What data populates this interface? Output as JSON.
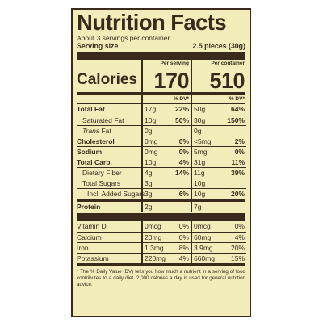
{
  "title": "Nutrition Facts",
  "servings_per_container": "About 3 servings per container",
  "serving_size_label": "Serving size",
  "serving_size_value": "2.5 pieces (30g)",
  "calories_label": "Calories",
  "per_serving_label": "Per serving",
  "per_container_label": "Per container",
  "calories_serving": "170",
  "calories_container": "510",
  "dv_label": "% DV*",
  "nutrients": [
    {
      "name": "Total Fat",
      "s_amt": "17g",
      "s_dv": "22%",
      "c_amt": "50g",
      "c_dv": "64%"
    },
    {
      "name": "Saturated Fat",
      "s_amt": "10g",
      "s_dv": "50%",
      "c_amt": "30g",
      "c_dv": "150%"
    },
    {
      "name_italic": "Trans",
      "name_rest": " Fat",
      "s_amt": "0g",
      "s_dv": "",
      "c_amt": "0g",
      "c_dv": ""
    },
    {
      "name": "Cholesterol",
      "s_amt": "0mg",
      "s_dv": "0%",
      "c_amt": "<5mg",
      "c_dv": "2%"
    },
    {
      "name": "Sodium",
      "s_amt": "0mg",
      "s_dv": "0%",
      "c_amt": "5mg",
      "c_dv": "0%"
    },
    {
      "name": "Total Carb.",
      "s_amt": "10g",
      "s_dv": "4%",
      "c_amt": "31g",
      "c_dv": "11%"
    },
    {
      "name": "Dietary Fiber",
      "s_amt": "4g",
      "s_dv": "14%",
      "c_amt": "11g",
      "c_dv": "39%"
    },
    {
      "name": "Total Sugars",
      "s_amt": "3g",
      "s_dv": "",
      "c_amt": "10g",
      "c_dv": ""
    },
    {
      "name": "Incl. Added Sugars",
      "s_amt": "3g",
      "s_dv": "6%",
      "c_amt": "10g",
      "c_dv": "20%"
    }
  ],
  "protein": {
    "name": "Protein",
    "s_amt": "2g",
    "c_amt": "7g"
  },
  "vitamins": [
    {
      "name": "Vitamin D",
      "s_amt": "0mcg",
      "s_dv": "0%",
      "c_amt": "0mcg",
      "c_dv": "0%"
    },
    {
      "name": "Calcium",
      "s_amt": "20mg",
      "s_dv": "0%",
      "c_amt": "60mg",
      "c_dv": "4%"
    },
    {
      "name": "Iron",
      "s_amt": "1.3mg",
      "s_dv": "8%",
      "c_amt": "3.9mg",
      "c_dv": "20%"
    },
    {
      "name": "Potassium",
      "s_amt": "220mg",
      "s_dv": "4%",
      "c_amt": "660mg",
      "c_dv": "15%"
    }
  ],
  "footnote": "* The % Daily Value (DV) tells you how much a nutrient in a serving of food contributes to a daily diet. 2,000 calories a day is used for general nutrition advice.",
  "colors": {
    "panel_bg": "#f1ecba",
    "ink": "#3a2a1c"
  }
}
